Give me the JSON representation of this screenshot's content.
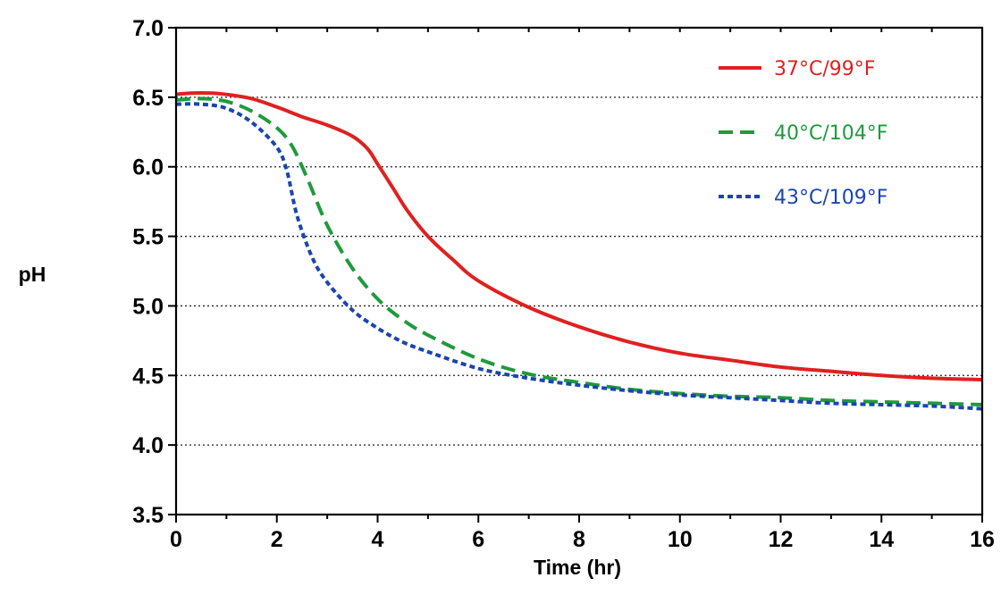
{
  "chart_data": {
    "type": "line",
    "title": "",
    "xlabel": "Time (hr)",
    "ylabel": "pH",
    "xlim": [
      0,
      16
    ],
    "ylim": [
      3.5,
      7.0
    ],
    "xticks": [
      0,
      2,
      4,
      6,
      8,
      10,
      12,
      14,
      16
    ],
    "yticks": [
      3.5,
      4.0,
      4.5,
      5.0,
      5.5,
      6.0,
      6.5,
      7.0
    ],
    "xtick_labels": [
      "0",
      "2",
      "4",
      "6",
      "8",
      "10",
      "12",
      "14",
      "16"
    ],
    "ytick_labels": [
      "3.5",
      "4.0",
      "4.5",
      "5.0",
      "5.5",
      "6.0",
      "6.5",
      "7.0"
    ],
    "grid": "horizontal dotted",
    "legend_position": "top-right",
    "series": [
      {
        "name": "37°C/99°F",
        "color": "#e02020",
        "style": "solid",
        "x": [
          0,
          0.3,
          0.7,
          1,
          1.5,
          2,
          2.5,
          3,
          3.5,
          3.8,
          4,
          4.3,
          4.6,
          5,
          5.5,
          6,
          7,
          8,
          9,
          10,
          11,
          12,
          13,
          14,
          15,
          16
        ],
        "y": [
          6.52,
          6.53,
          6.53,
          6.52,
          6.49,
          6.43,
          6.36,
          6.3,
          6.22,
          6.13,
          6.02,
          5.85,
          5.68,
          5.5,
          5.33,
          5.18,
          4.99,
          4.85,
          4.74,
          4.66,
          4.61,
          4.56,
          4.53,
          4.5,
          4.48,
          4.47
        ]
      },
      {
        "name": "40°C/104°F",
        "color": "#1f9a3c",
        "style": "dashed",
        "x": [
          0,
          0.5,
          1,
          1.5,
          2,
          2.3,
          2.6,
          3,
          3.5,
          4,
          4.5,
          5,
          6,
          7,
          8,
          9,
          10,
          11,
          12,
          13,
          14,
          15,
          16
        ],
        "y": [
          6.48,
          6.49,
          6.47,
          6.4,
          6.28,
          6.15,
          5.92,
          5.58,
          5.27,
          5.05,
          4.9,
          4.79,
          4.62,
          4.51,
          4.45,
          4.4,
          4.37,
          4.35,
          4.34,
          4.32,
          4.31,
          4.3,
          4.29
        ]
      },
      {
        "name": "43°C/109°F",
        "color": "#1a45b0",
        "style": "dotted",
        "x": [
          0,
          0.5,
          1,
          1.5,
          2,
          2.2,
          2.4,
          2.7,
          3,
          3.5,
          4,
          4.5,
          5,
          6,
          7,
          8,
          9,
          10,
          11,
          12,
          13,
          14,
          15,
          16
        ],
        "y": [
          6.45,
          6.45,
          6.42,
          6.32,
          6.14,
          5.97,
          5.65,
          5.35,
          5.17,
          4.97,
          4.84,
          4.74,
          4.67,
          4.55,
          4.48,
          4.43,
          4.39,
          4.36,
          4.34,
          4.32,
          4.3,
          4.29,
          4.28,
          4.26
        ]
      }
    ]
  }
}
